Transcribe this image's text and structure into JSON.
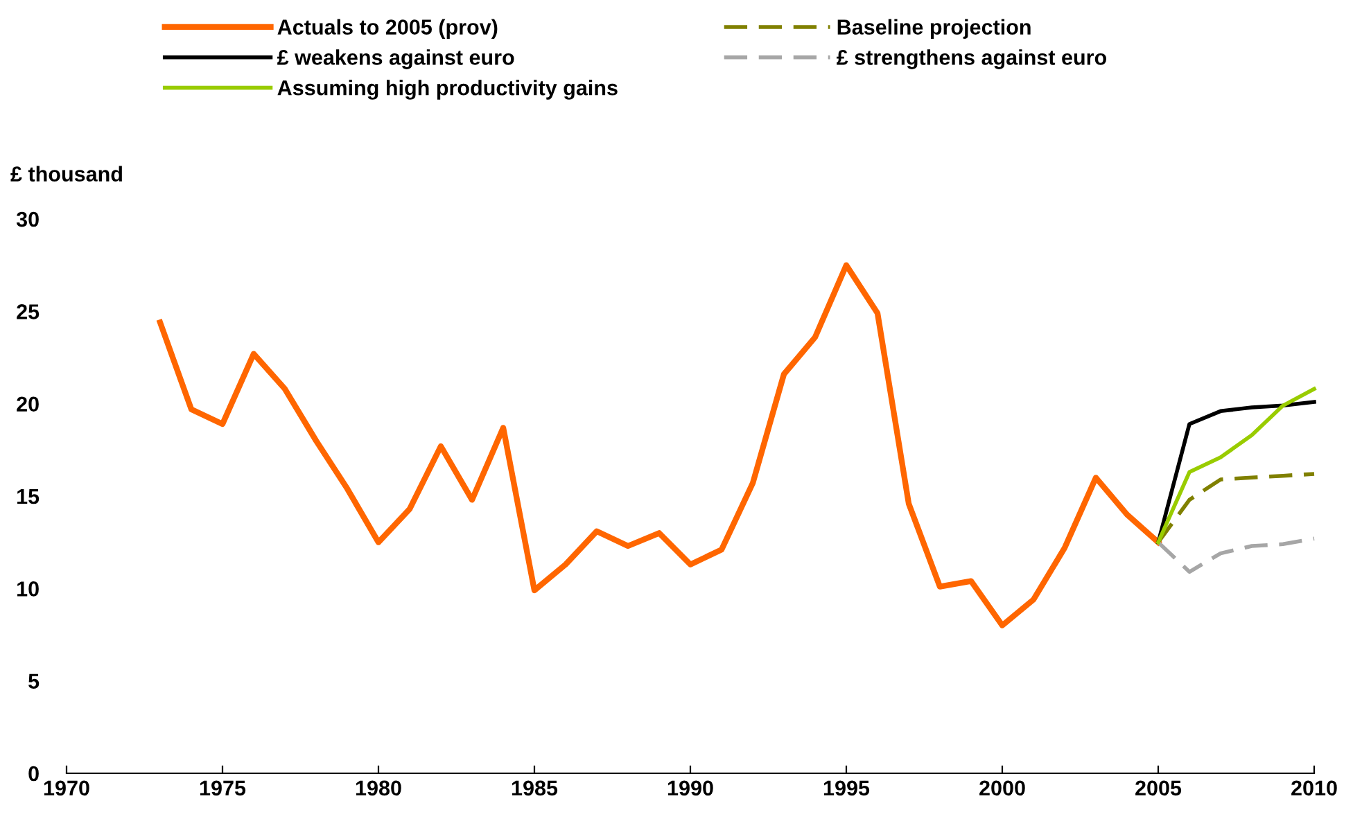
{
  "chart_data": {
    "type": "line",
    "ylabel": "£ thousand",
    "xlim": [
      1970,
      2010
    ],
    "xticks": [
      1970,
      1975,
      1980,
      1985,
      1990,
      1995,
      2000,
      2005,
      2010
    ],
    "ylim": [
      0,
      30
    ],
    "yticks": [
      0,
      5,
      10,
      15,
      20,
      25,
      30
    ],
    "grid": false,
    "legend": "top",
    "marker": "none",
    "series": [
      {
        "name": "Actuals to 2005 (prov)",
        "color": "#ff6600",
        "line_style": "solid",
        "x": [
          1973,
          1974,
          1975,
          1976,
          1977,
          1978,
          1979,
          1980,
          1981,
          1982,
          1983,
          1984,
          1985,
          1986,
          1987,
          1988,
          1989,
          1990,
          1991,
          1992,
          1993,
          1994,
          1995,
          1996,
          1997,
          1998,
          1999,
          2000,
          2001,
          2002,
          2003,
          2004,
          2005
        ],
        "values": [
          24.4,
          19.7,
          18.9,
          22.7,
          20.8,
          18.0,
          15.4,
          12.5,
          14.3,
          17.7,
          14.8,
          18.7,
          9.9,
          11.3,
          13.1,
          12.3,
          13.0,
          11.3,
          12.1,
          15.7,
          21.6,
          23.6,
          27.5,
          24.9,
          14.6,
          10.1,
          10.4,
          8.0,
          9.4,
          12.2,
          16.0,
          14.0,
          12.5
        ]
      },
      {
        "name": "Baseline projection",
        "color": "#808000",
        "line_style": "dashed",
        "x": [
          2005,
          2006,
          2007,
          2008,
          2009,
          2010
        ],
        "values": [
          12.5,
          14.8,
          15.9,
          16.0,
          16.1,
          16.2
        ]
      },
      {
        "name": "£ weakens against euro",
        "color": "#000000",
        "line_style": "solid",
        "x": [
          2005,
          2006,
          2007,
          2008,
          2009,
          2010
        ],
        "values": [
          12.5,
          18.9,
          19.6,
          19.8,
          19.9,
          20.1
        ]
      },
      {
        "name": "£ strengthens against euro",
        "color": "#a6a6a6",
        "line_style": "dashed",
        "x": [
          2005,
          2006,
          2007,
          2008,
          2009,
          2010
        ],
        "values": [
          12.5,
          10.9,
          11.9,
          12.3,
          12.4,
          12.7
        ]
      },
      {
        "name": "Assuming high productivity gains",
        "color": "#99cc00",
        "line_style": "solid",
        "x": [
          2005,
          2006,
          2007,
          2008,
          2009,
          2010
        ],
        "values": [
          12.5,
          16.3,
          17.1,
          18.3,
          19.9,
          20.8
        ]
      }
    ]
  }
}
